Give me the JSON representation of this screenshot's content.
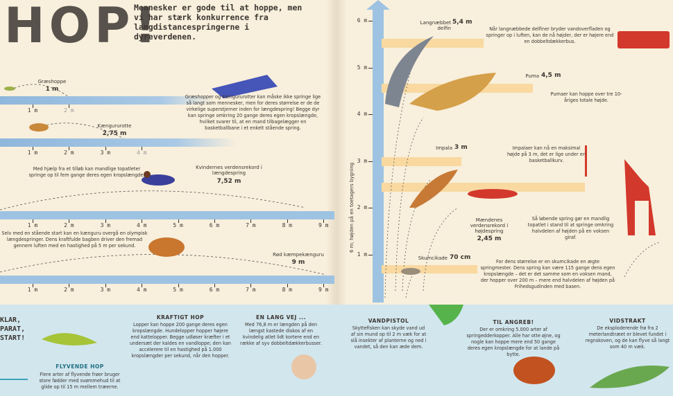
{
  "left_page": {
    "title": "HOP!",
    "intro": "Mennesker er gode til at hoppe, men vi har stærk konkurrence fra langdistancespringerne i dyreverdenen.",
    "rows": [
      {
        "label": "Græshoppe",
        "distance": "1 m",
        "ticks": [
          "1 m",
          "2 m"
        ]
      },
      {
        "label": "Kængururotte",
        "distance": "2,75 m",
        "ticks": [
          "1 m",
          "2 m",
          "3 m",
          "4 m"
        ]
      },
      {
        "label": "Kvindernes verdensrekord i længdespring",
        "distance": "7,52 m",
        "ticks": [
          "1 m",
          "2 m",
          "3 m",
          "4 m",
          "5 m",
          "6 m",
          "7 m",
          "8 m",
          "9 m"
        ]
      },
      {
        "label": "Rød kæmpekænguru",
        "distance": "9 m",
        "ticks": [
          "1 m",
          "2 m",
          "3 m",
          "4 m",
          "5 m",
          "6 m",
          "7 m",
          "8 m",
          "9 m"
        ]
      }
    ],
    "notes": [
      "Græshopper og kængururotter kan måske ikke springe lige så langt som mennesker, men for deres størrelse er de de virkelige superstjerner inden for længdespring! Begge dyr kan springe omkring 20 gange deres egen kropslængde, hvilket svarer til, at en mand tilbagelægger en basketballbane i et enkelt stående spring.",
      "Med hjælp fra et tilløb kan mandlige topatleter springe op til fem gange deres egen kropslængde.",
      "Selv med en stående start kan en kænguru overgå en olympisk længdespringer. Dens kraftfulde bagben driver den fremad gennem luften med en hastighed på 5 m per sekund."
    ]
  },
  "right_page": {
    "axis_label": "6 m; højden på en toetagers bygning",
    "ticks": [
      "1 m",
      "2 m",
      "3 m",
      "4 m",
      "5 m",
      "6 m"
    ],
    "jumpers": [
      {
        "label": "Langnæbbet delfin",
        "height": "5,4 m",
        "note": "Når langnæbbede delfiner bryder vandoverfladen og springer op i luften, kan de nå højder, der er højere end en dobbeltdækkerbus."
      },
      {
        "label": "Puma",
        "height": "4,5 m",
        "note": "Pumaer kan hoppe over tre 10-åriges totale højde."
      },
      {
        "label": "Impala",
        "height": "3 m",
        "note": "Impalaer kan nå en maksimal højde på 3 m, det er lige under en basketballkurv."
      },
      {
        "label": "Mændenes verdensrekord i højdespring",
        "height": "2,45 m",
        "note": "Så løbende spring gør en mandlig topatlet i stand til at springe omkring halvdelen af højden på en voksen giraf."
      },
      {
        "label": "Skumcikade",
        "height": "70 cm",
        "note": "For dens størrelse er en skumcikade en ægte springmester. Dens spring kan være 115 gange dens egen kropslængde – det er det samme som en voksen mand, der hopper over 200 m – mere end halvdelen af højden på Frihedsgudinden med basen."
      }
    ]
  },
  "bottom": {
    "heading": "KLAR, PARAT, START!",
    "panels": [
      {
        "title": "FLYVENDE HOP",
        "text": "Flere arter af flyvende frøer bruger store fødder med svømmehud til at glide op til 15 m mellem træerne."
      },
      {
        "title": "KRAFTIGT HOP",
        "text": "Lopper kan hoppe 200 gange deres egen kropslængde. Hundelopper hopper højere end kattelopper. Begge udløser kræfter i et undersæt der kaldes en vandloppe; den kan accelerere til en hastighed på 1.000 kropslængder per sekund, når den hopper."
      },
      {
        "title": "EN LANG VEJ ...",
        "text": "Med 76,8 m er længden på den længst kastede diskos af en kvindelig atlet lidt kortere end en række af syv dobbeltdækkerbusser."
      },
      {
        "title": "VANDPISTOL",
        "text": "Skyttefisken kan skyde vand ud af sin mund op til 2 m væk for at slå insekter af planterne og ned i vandet, så den kan æde dem."
      },
      {
        "title": "TIL ANGREB!",
        "text": "Der er omkring 5.000 arter af springedderkopper. Alle har otte øjne, og nogle kan hoppe mere end 50 gange deres egen kropslængde for at lande på bytte."
      },
      {
        "title": "VIDSTRAKT",
        "text": "De eksploderende frø fra 2 meterlandtræet er blevet fundet i regnskoven, og de kan flyve så langt som 40 m væk."
      }
    ]
  }
}
